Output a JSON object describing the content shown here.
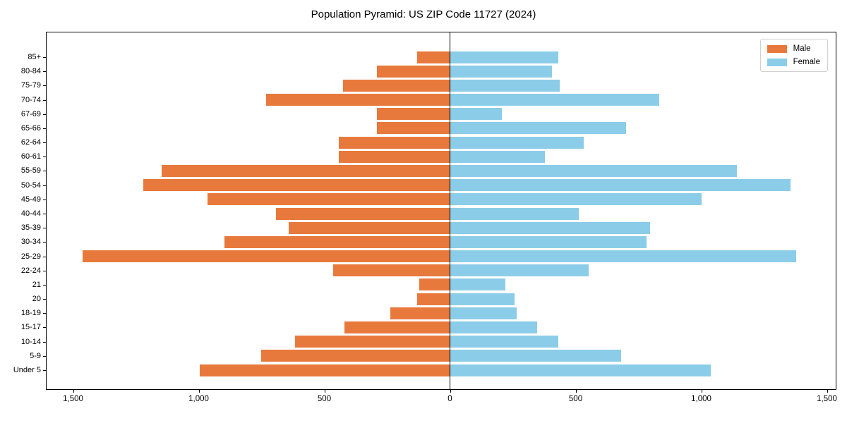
{
  "title": "Population Pyramid: US ZIP Code 11727 (2024)",
  "legend": {
    "male_label": "Male",
    "female_label": "Female",
    "position": "upper-right"
  },
  "colors": {
    "male": "#E8793C",
    "female": "#8BCDE8",
    "axis": "#000000",
    "legend_border": "#d0d0d0"
  },
  "chart_data": {
    "type": "bar",
    "subtype": "population-pyramid",
    "orientation": "horizontal",
    "male_direction": "left",
    "title": "Population Pyramid: US ZIP Code 11727 (2024)",
    "categories": [
      "85+",
      "80-84",
      "75-79",
      "70-74",
      "67-69",
      "65-66",
      "62-64",
      "60-61",
      "55-59",
      "50-54",
      "45-49",
      "40-44",
      "35-39",
      "30-34",
      "25-29",
      "22-24",
      "21",
      "20",
      "18-19",
      "15-17",
      "10-14",
      "5-9",
      "Under 5"
    ],
    "series": [
      {
        "name": "Male",
        "color": "#E8793C",
        "values": [
          130,
          290,
          425,
          730,
          290,
          290,
          440,
          440,
          1145,
          1220,
          965,
          690,
          640,
          895,
          1460,
          465,
          120,
          130,
          235,
          420,
          615,
          750,
          995
        ]
      },
      {
        "name": "Female",
        "color": "#8BCDE8",
        "values": [
          430,
          405,
          435,
          830,
          205,
          700,
          530,
          375,
          1140,
          1355,
          1000,
          510,
          795,
          780,
          1375,
          550,
          220,
          255,
          265,
          345,
          430,
          680,
          1035
        ]
      }
    ],
    "x_ticks": {
      "values": [
        -1500,
        -1000,
        -500,
        0,
        500,
        1000,
        1500
      ],
      "labels": [
        "1,500",
        "1,000",
        "500",
        "0",
        "500",
        "1,000",
        "1,500"
      ]
    },
    "xlim": [
      -1607,
      1539
    ],
    "grid": false,
    "legend_position": "upper right"
  }
}
